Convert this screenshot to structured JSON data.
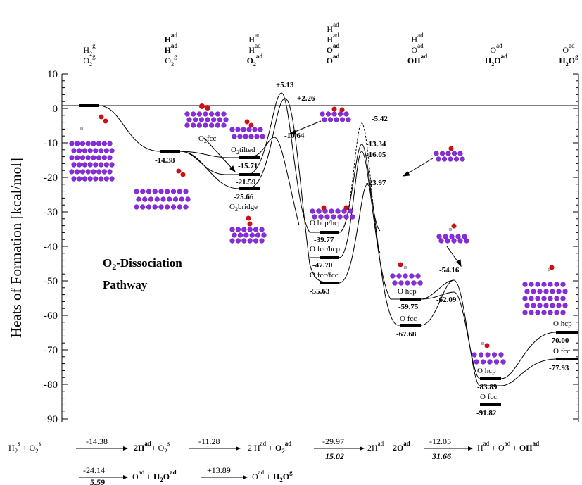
{
  "chart_data": {
    "type": "line",
    "title": "O₂-Dissociation Pathway",
    "title_line1": "O",
    "title_sub": "2",
    "title_rest": "-Dissociation",
    "title_line2": "Pathway",
    "ylabel": "Heats of Formation [kcal/mol]",
    "ylim": [
      -95,
      10
    ],
    "yticks": [
      "10",
      "0",
      "-10",
      "-20",
      "-30",
      "-40",
      "-50",
      "-60",
      "-70",
      "-80",
      "-90"
    ],
    "state_columns": [
      {
        "lines": [
          [
            "H",
            "2",
            "g"
          ],
          [
            "O",
            "2",
            "g"
          ]
        ]
      },
      {
        "lines": [
          [
            "H",
            "",
            "ad"
          ],
          [
            "H",
            "",
            "ad"
          ],
          [
            "O",
            "2",
            "g"
          ]
        ]
      },
      {
        "lines": [
          [
            "H",
            "",
            "ad"
          ],
          [
            "H",
            "",
            "ad"
          ],
          [
            "O",
            "2",
            "ad"
          ]
        ]
      },
      {
        "lines": [
          [
            "H",
            "",
            "ad"
          ],
          [
            "H",
            "",
            "ad"
          ],
          [
            "O",
            "",
            "ad"
          ],
          [
            "O",
            "",
            "ad"
          ]
        ]
      },
      {
        "lines": [
          [
            "H",
            "",
            "ad"
          ],
          [
            "O",
            "",
            "ad"
          ],
          [
            "OH",
            "",
            "ad"
          ]
        ]
      },
      {
        "lines": [
          [
            "O",
            "",
            "ad"
          ],
          [
            "H",
            "2",
            "O",
            "ad"
          ]
        ]
      },
      {
        "lines": [
          [
            "O",
            "",
            "ad"
          ],
          [
            "H",
            "2",
            "O",
            "g"
          ]
        ]
      }
    ],
    "levels": [
      {
        "value": "0"
      },
      {
        "value": "-14.38",
        "label": "-14.38"
      },
      {
        "value": "-15.71",
        "label": "-15.71",
        "site": "O2tilted"
      },
      {
        "value": "-21.59",
        "label": "-21.59",
        "site": "O2fcc"
      },
      {
        "value": "-25.66",
        "label": "-25.66",
        "site": "O2bridge"
      },
      {
        "value": "-39.77",
        "label": "-39.77",
        "site": "O hcp/hcp"
      },
      {
        "value": "-47.70",
        "label": "-47.70",
        "site": "O fcc/hcp"
      },
      {
        "value": "-55.63",
        "label": "-55.63",
        "site": "O fcc/fcc"
      },
      {
        "value": "-59.75",
        "label": "-59.75",
        "site": "O hcp"
      },
      {
        "value": "-67.68",
        "label": "-67.68",
        "site": "O fcc"
      },
      {
        "value": "-83.89",
        "label": "-83.89",
        "site": "O hcp"
      },
      {
        "value": "-91.82",
        "label": "-91.82",
        "site": "O fcc"
      },
      {
        "value": "-70.00",
        "label": "-70.00",
        "site": "O hcp"
      },
      {
        "value": "-77.93",
        "label": "-77.93",
        "site": "O fcc"
      }
    ],
    "barriers": [
      "+5.13",
      "+2.26",
      "-10.64",
      "-5.42",
      "-13.34",
      "-16.05",
      "-23.97",
      "-54.16",
      "-62.09"
    ],
    "site_labels": {
      "o2fcc_main": "O",
      "o2fcc_sub": "2",
      "o2fcc_rest": "fcc",
      "o2tilted_main": "O",
      "o2tilted_sub": "2",
      "o2tilted_rest": "tilted",
      "o2bridge_main": "O",
      "o2bridge_sub": "2",
      "o2bridge_rest": "bridge",
      "ohcphcp": "O hcp/hcp",
      "ofcchcp": "O fcc/hcp",
      "ofccfcc": "O fcc/fcc",
      "ohcp1": "O hcp",
      "ofcc1": "O fcc",
      "ohcp2": "O hcp",
      "ofcc2": "O fcc",
      "ohcp3": "O hcp",
      "ofcc3": "O fcc"
    },
    "reaction_steps": [
      {
        "top": "-14.38",
        "bottom": ""
      },
      {
        "top": "-11.28",
        "bottom": ""
      },
      {
        "top": "-29.97",
        "bottom": "15.02"
      },
      {
        "top": "-12.05",
        "bottom": "31.66"
      },
      {
        "top": "-24.14",
        "bottom": "5.59"
      },
      {
        "top": "+13.89",
        "bottom": ""
      }
    ]
  }
}
